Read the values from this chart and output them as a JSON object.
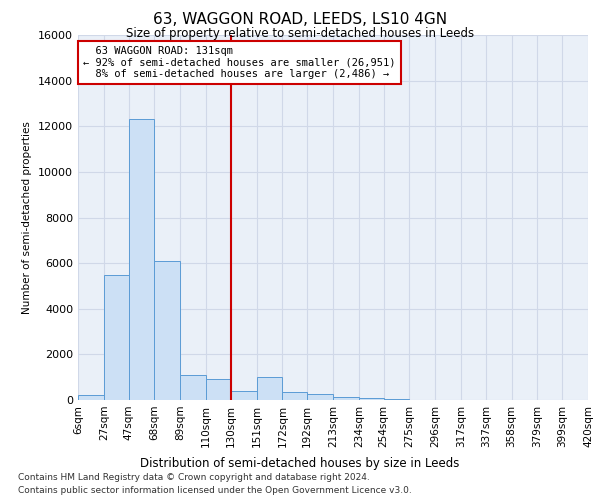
{
  "title": "63, WAGGON ROAD, LEEDS, LS10 4GN",
  "subtitle": "Size of property relative to semi-detached houses in Leeds",
  "xlabel": "Distribution of semi-detached houses by size in Leeds",
  "ylabel": "Number of semi-detached properties",
  "property_label": "63 WAGGON ROAD: 131sqm",
  "pct_smaller": 92,
  "count_smaller": 26951,
  "pct_larger": 8,
  "count_larger": 2486,
  "bin_labels": [
    "6sqm",
    "27sqm",
    "47sqm",
    "68sqm",
    "89sqm",
    "110sqm",
    "130sqm",
    "151sqm",
    "172sqm",
    "192sqm",
    "213sqm",
    "234sqm",
    "254sqm",
    "275sqm",
    "296sqm",
    "317sqm",
    "337sqm",
    "358sqm",
    "379sqm",
    "399sqm",
    "420sqm"
  ],
  "bin_starts": [
    6,
    27,
    47,
    68,
    89,
    110,
    130,
    151,
    172,
    192,
    213,
    234,
    254,
    275,
    296,
    317,
    337,
    358,
    379,
    399,
    420
  ],
  "bar_heights": [
    200,
    5500,
    12300,
    6100,
    1100,
    900,
    400,
    1000,
    350,
    250,
    150,
    80,
    50,
    0,
    0,
    0,
    0,
    0,
    0,
    0
  ],
  "bar_color": "#cce0f5",
  "bar_edge_color": "#5b9bd5",
  "red_line_x": 130,
  "annotation_box_color": "#ffffff",
  "annotation_box_edge_color": "#cc0000",
  "grid_color": "#d0d8e8",
  "background_color": "#eaf0f8",
  "ylim": [
    0,
    16000
  ],
  "yticks": [
    0,
    2000,
    4000,
    6000,
    8000,
    10000,
    12000,
    14000,
    16000
  ],
  "footer1": "Contains HM Land Registry data © Crown copyright and database right 2024.",
  "footer2": "Contains public sector information licensed under the Open Government Licence v3.0."
}
